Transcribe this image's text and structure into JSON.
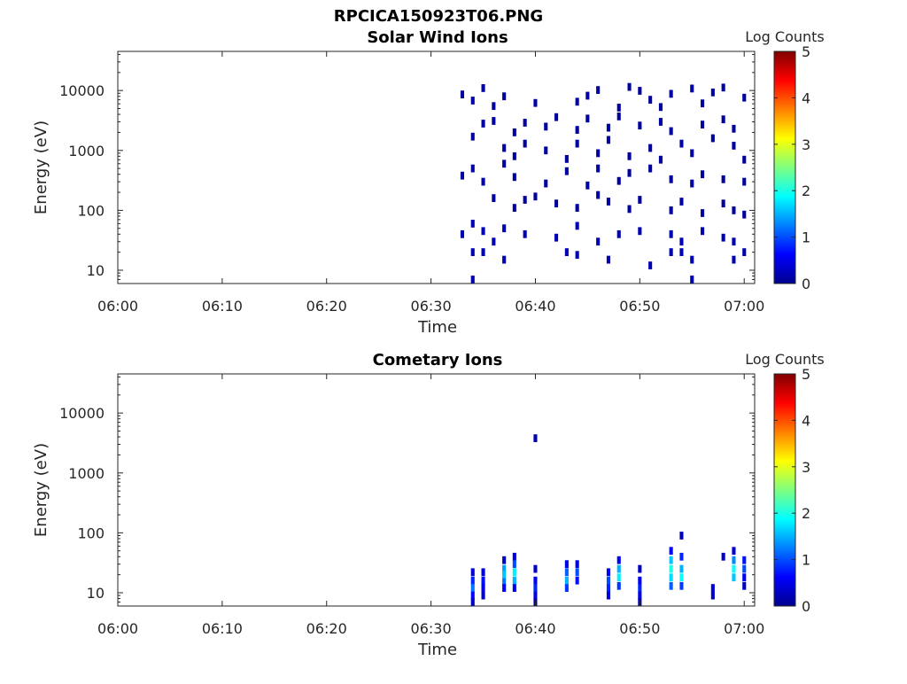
{
  "figure": {
    "filename": "RPCICA150923T06.PNG"
  },
  "colorbar": {
    "label": "Log Counts",
    "min": 0,
    "max": 5,
    "ticks": [
      "0",
      "1",
      "2",
      "3",
      "4",
      "5"
    ],
    "colormap": "jet"
  },
  "chart_data": [
    {
      "type": "heatmap",
      "title": "Solar Wind Ions",
      "xlabel": "Time",
      "ylabel": "Energy (eV)",
      "xlim": [
        "06:00",
        "07:01"
      ],
      "ylim": [
        6,
        45000
      ],
      "yscale": "log",
      "xticks": [
        "06:00",
        "06:10",
        "06:20",
        "06:30",
        "06:40",
        "06:50",
        "07:00"
      ],
      "yticks": [
        "10",
        "100",
        "1000",
        "10000"
      ],
      "colorbar_label": "Log Counts",
      "points": [
        {
          "t": "06:33",
          "e": 8600,
          "c": 0.1
        },
        {
          "t": "06:34",
          "e": 6800,
          "c": 0.1
        },
        {
          "t": "06:35",
          "e": 11000,
          "c": 0.1
        },
        {
          "t": "06:36",
          "e": 5500,
          "c": 0.1
        },
        {
          "t": "06:37",
          "e": 8000,
          "c": 0.1
        },
        {
          "t": "06:40",
          "e": 6200,
          "c": 0.1
        },
        {
          "t": "06:44",
          "e": 6500,
          "c": 0.1
        },
        {
          "t": "06:45",
          "e": 8200,
          "c": 0.1
        },
        {
          "t": "06:46",
          "e": 10200,
          "c": 0.1
        },
        {
          "t": "06:48",
          "e": 5200,
          "c": 0.1
        },
        {
          "t": "06:49",
          "e": 11500,
          "c": 0.1
        },
        {
          "t": "06:50",
          "e": 9900,
          "c": 0.1
        },
        {
          "t": "06:51",
          "e": 7000,
          "c": 0.1
        },
        {
          "t": "06:52",
          "e": 5300,
          "c": 0.1
        },
        {
          "t": "06:53",
          "e": 8800,
          "c": 0.1
        },
        {
          "t": "06:55",
          "e": 10800,
          "c": 0.1
        },
        {
          "t": "06:56",
          "e": 6100,
          "c": 0.1
        },
        {
          "t": "06:57",
          "e": 9300,
          "c": 0.1
        },
        {
          "t": "06:58",
          "e": 11200,
          "c": 0.1
        },
        {
          "t": "07:00",
          "e": 7600,
          "c": 0.1
        },
        {
          "t": "06:35",
          "e": 2800,
          "c": 0.1
        },
        {
          "t": "06:36",
          "e": 3100,
          "c": 0.1
        },
        {
          "t": "06:38",
          "e": 2000,
          "c": 0.1
        },
        {
          "t": "06:39",
          "e": 2900,
          "c": 0.1
        },
        {
          "t": "06:41",
          "e": 2500,
          "c": 0.1
        },
        {
          "t": "06:42",
          "e": 3600,
          "c": 0.1
        },
        {
          "t": "06:44",
          "e": 2200,
          "c": 0.1
        },
        {
          "t": "06:45",
          "e": 3400,
          "c": 0.1
        },
        {
          "t": "06:47",
          "e": 2400,
          "c": 0.1
        },
        {
          "t": "06:48",
          "e": 3700,
          "c": 0.1
        },
        {
          "t": "06:50",
          "e": 2600,
          "c": 0.1
        },
        {
          "t": "06:52",
          "e": 3000,
          "c": 0.1
        },
        {
          "t": "06:53",
          "e": 2100,
          "c": 0.1
        },
        {
          "t": "06:56",
          "e": 2700,
          "c": 0.1
        },
        {
          "t": "06:58",
          "e": 3300,
          "c": 0.1
        },
        {
          "t": "06:59",
          "e": 2300,
          "c": 0.1
        },
        {
          "t": "06:34",
          "e": 1700,
          "c": 0.1
        },
        {
          "t": "06:37",
          "e": 1100,
          "c": 0.1
        },
        {
          "t": "06:38",
          "e": 800,
          "c": 0.1
        },
        {
          "t": "06:39",
          "e": 1300,
          "c": 0.1
        },
        {
          "t": "06:41",
          "e": 1000,
          "c": 0.1
        },
        {
          "t": "06:43",
          "e": 720,
          "c": 0.1
        },
        {
          "t": "06:44",
          "e": 1300,
          "c": 0.1
        },
        {
          "t": "06:46",
          "e": 900,
          "c": 0.1
        },
        {
          "t": "06:47",
          "e": 1500,
          "c": 0.1
        },
        {
          "t": "06:49",
          "e": 800,
          "c": 0.1
        },
        {
          "t": "06:51",
          "e": 1100,
          "c": 0.1
        },
        {
          "t": "06:52",
          "e": 700,
          "c": 0.1
        },
        {
          "t": "06:54",
          "e": 1300,
          "c": 0.1
        },
        {
          "t": "06:55",
          "e": 900,
          "c": 0.1
        },
        {
          "t": "06:57",
          "e": 1600,
          "c": 0.1
        },
        {
          "t": "06:59",
          "e": 1200,
          "c": 0.1
        },
        {
          "t": "07:00",
          "e": 700,
          "c": 0.1
        },
        {
          "t": "06:33",
          "e": 380,
          "c": 0.1
        },
        {
          "t": "06:34",
          "e": 500,
          "c": 0.1
        },
        {
          "t": "06:35",
          "e": 300,
          "c": 0.1
        },
        {
          "t": "06:37",
          "e": 600,
          "c": 0.1
        },
        {
          "t": "06:38",
          "e": 360,
          "c": 0.1
        },
        {
          "t": "06:41",
          "e": 280,
          "c": 0.1
        },
        {
          "t": "06:43",
          "e": 450,
          "c": 0.1
        },
        {
          "t": "06:45",
          "e": 260,
          "c": 0.1
        },
        {
          "t": "06:46",
          "e": 500,
          "c": 0.1
        },
        {
          "t": "06:48",
          "e": 310,
          "c": 0.1
        },
        {
          "t": "06:49",
          "e": 420,
          "c": 0.1
        },
        {
          "t": "06:51",
          "e": 500,
          "c": 0.1
        },
        {
          "t": "06:53",
          "e": 330,
          "c": 0.1
        },
        {
          "t": "06:55",
          "e": 280,
          "c": 0.1
        },
        {
          "t": "06:56",
          "e": 400,
          "c": 0.1
        },
        {
          "t": "06:58",
          "e": 330,
          "c": 0.1
        },
        {
          "t": "07:00",
          "e": 300,
          "c": 0.1
        },
        {
          "t": "06:36",
          "e": 160,
          "c": 0.1
        },
        {
          "t": "06:38",
          "e": 110,
          "c": 0.1
        },
        {
          "t": "06:39",
          "e": 150,
          "c": 0.1
        },
        {
          "t": "06:40",
          "e": 170,
          "c": 0.1
        },
        {
          "t": "06:42",
          "e": 130,
          "c": 0.1
        },
        {
          "t": "06:44",
          "e": 110,
          "c": 0.1
        },
        {
          "t": "06:46",
          "e": 180,
          "c": 0.1
        },
        {
          "t": "06:47",
          "e": 140,
          "c": 0.1
        },
        {
          "t": "06:49",
          "e": 105,
          "c": 0.1
        },
        {
          "t": "06:50",
          "e": 150,
          "c": 0.1
        },
        {
          "t": "06:53",
          "e": 100,
          "c": 0.1
        },
        {
          "t": "06:54",
          "e": 140,
          "c": 0.1
        },
        {
          "t": "06:56",
          "e": 90,
          "c": 0.1
        },
        {
          "t": "06:58",
          "e": 130,
          "c": 0.1
        },
        {
          "t": "06:59",
          "e": 100,
          "c": 0.1
        },
        {
          "t": "07:00",
          "e": 85,
          "c": 0.1
        },
        {
          "t": "06:33",
          "e": 40,
          "c": 0.2
        },
        {
          "t": "06:34",
          "e": 60,
          "c": 0.2
        },
        {
          "t": "06:35",
          "e": 45,
          "c": 0.2
        },
        {
          "t": "06:36",
          "e": 30,
          "c": 0.2
        },
        {
          "t": "06:37",
          "e": 50,
          "c": 0.2
        },
        {
          "t": "06:39",
          "e": 40,
          "c": 0.2
        },
        {
          "t": "06:42",
          "e": 35,
          "c": 0.2
        },
        {
          "t": "06:44",
          "e": 55,
          "c": 0.2
        },
        {
          "t": "06:46",
          "e": 30,
          "c": 0.2
        },
        {
          "t": "06:48",
          "e": 40,
          "c": 0.2
        },
        {
          "t": "06:50",
          "e": 45,
          "c": 0.2
        },
        {
          "t": "06:53",
          "e": 40,
          "c": 0.2
        },
        {
          "t": "06:54",
          "e": 30,
          "c": 0.2
        },
        {
          "t": "06:56",
          "e": 45,
          "c": 0.2
        },
        {
          "t": "06:58",
          "e": 35,
          "c": 0.2
        },
        {
          "t": "06:59",
          "e": 30,
          "c": 0.2
        },
        {
          "t": "06:34",
          "e": 20,
          "c": 0.2
        },
        {
          "t": "06:35",
          "e": 20,
          "c": 0.2
        },
        {
          "t": "06:37",
          "e": 15,
          "c": 0.2
        },
        {
          "t": "06:43",
          "e": 20,
          "c": 0.2
        },
        {
          "t": "06:44",
          "e": 18,
          "c": 0.2
        },
        {
          "t": "06:47",
          "e": 15,
          "c": 0.2
        },
        {
          "t": "06:51",
          "e": 12,
          "c": 0.2
        },
        {
          "t": "06:53",
          "e": 20,
          "c": 0.2
        },
        {
          "t": "06:54",
          "e": 20,
          "c": 0.2
        },
        {
          "t": "06:55",
          "e": 15,
          "c": 0.2
        },
        {
          "t": "06:59",
          "e": 15,
          "c": 0.2
        },
        {
          "t": "07:00",
          "e": 20,
          "c": 0.2
        },
        {
          "t": "06:34",
          "e": 7,
          "c": 0.2
        },
        {
          "t": "06:55",
          "e": 7,
          "c": 0.2
        }
      ]
    },
    {
      "type": "heatmap",
      "title": "Cometary Ions",
      "xlabel": "Time",
      "ylabel": "Energy (eV)",
      "xlim": [
        "06:00",
        "07:01"
      ],
      "ylim": [
        6,
        45000
      ],
      "yscale": "log",
      "xticks": [
        "06:00",
        "06:10",
        "06:20",
        "06:30",
        "06:40",
        "06:50",
        "07:00"
      ],
      "yticks": [
        "10",
        "100",
        "1000",
        "10000"
      ],
      "colorbar_label": "Log Counts",
      "points": [
        {
          "t": "06:40",
          "e": 3800,
          "c": 0.2
        },
        {
          "t": "06:54",
          "e": 90,
          "c": 0.2
        },
        {
          "t": "06:34",
          "e": 22,
          "c": 0.4
        },
        {
          "t": "06:34",
          "e": 16,
          "c": 0.8
        },
        {
          "t": "06:34",
          "e": 12,
          "c": 1.2
        },
        {
          "t": "06:34",
          "e": 9,
          "c": 0.6
        },
        {
          "t": "06:34",
          "e": 7,
          "c": 0.3
        },
        {
          "t": "06:35",
          "e": 22,
          "c": 0.4
        },
        {
          "t": "06:35",
          "e": 16,
          "c": 0.7
        },
        {
          "t": "06:35",
          "e": 12,
          "c": 0.5
        },
        {
          "t": "06:35",
          "e": 9,
          "c": 0.3
        },
        {
          "t": "06:37",
          "e": 35,
          "c": 0.3
        },
        {
          "t": "06:37",
          "e": 25,
          "c": 1.4
        },
        {
          "t": "06:37",
          "e": 20,
          "c": 1.6
        },
        {
          "t": "06:37",
          "e": 15,
          "c": 1.2
        },
        {
          "t": "06:37",
          "e": 12,
          "c": 0.6
        },
        {
          "t": "06:38",
          "e": 40,
          "c": 0.4
        },
        {
          "t": "06:38",
          "e": 30,
          "c": 1.0
        },
        {
          "t": "06:38",
          "e": 22,
          "c": 1.8
        },
        {
          "t": "06:38",
          "e": 16,
          "c": 1.5
        },
        {
          "t": "06:38",
          "e": 12,
          "c": 0.5
        },
        {
          "t": "06:40",
          "e": 25,
          "c": 0.3
        },
        {
          "t": "06:40",
          "e": 16,
          "c": 0.6
        },
        {
          "t": "06:40",
          "e": 12,
          "c": 0.8
        },
        {
          "t": "06:40",
          "e": 9,
          "c": 0.5
        },
        {
          "t": "06:40",
          "e": 7,
          "c": 0.2
        },
        {
          "t": "06:43",
          "e": 30,
          "c": 0.5
        },
        {
          "t": "06:43",
          "e": 22,
          "c": 1.1
        },
        {
          "t": "06:43",
          "e": 16,
          "c": 1.5
        },
        {
          "t": "06:43",
          "e": 12,
          "c": 0.9
        },
        {
          "t": "06:44",
          "e": 30,
          "c": 0.4
        },
        {
          "t": "06:44",
          "e": 22,
          "c": 1.0
        },
        {
          "t": "06:44",
          "e": 16,
          "c": 0.7
        },
        {
          "t": "06:47",
          "e": 22,
          "c": 0.6
        },
        {
          "t": "06:47",
          "e": 16,
          "c": 1.0
        },
        {
          "t": "06:47",
          "e": 12,
          "c": 0.8
        },
        {
          "t": "06:47",
          "e": 9,
          "c": 0.4
        },
        {
          "t": "06:48",
          "e": 35,
          "c": 0.5
        },
        {
          "t": "06:48",
          "e": 25,
          "c": 1.5
        },
        {
          "t": "06:48",
          "e": 18,
          "c": 1.8
        },
        {
          "t": "06:48",
          "e": 13,
          "c": 0.9
        },
        {
          "t": "06:50",
          "e": 25,
          "c": 0.3
        },
        {
          "t": "06:50",
          "e": 16,
          "c": 0.6
        },
        {
          "t": "06:50",
          "e": 12,
          "c": 0.8
        },
        {
          "t": "06:50",
          "e": 9,
          "c": 0.5
        },
        {
          "t": "06:50",
          "e": 7,
          "c": 0.3
        },
        {
          "t": "06:53",
          "e": 50,
          "c": 0.6
        },
        {
          "t": "06:53",
          "e": 35,
          "c": 1.6
        },
        {
          "t": "06:53",
          "e": 25,
          "c": 2.0
        },
        {
          "t": "06:53",
          "e": 18,
          "c": 1.7
        },
        {
          "t": "06:53",
          "e": 13,
          "c": 1.1
        },
        {
          "t": "06:54",
          "e": 40,
          "c": 0.8
        },
        {
          "t": "06:54",
          "e": 25,
          "c": 1.5
        },
        {
          "t": "06:54",
          "e": 18,
          "c": 1.9
        },
        {
          "t": "06:54",
          "e": 13,
          "c": 0.9
        },
        {
          "t": "06:57",
          "e": 12,
          "c": 0.4
        },
        {
          "t": "06:57",
          "e": 9,
          "c": 0.3
        },
        {
          "t": "06:58",
          "e": 40,
          "c": 0.3
        },
        {
          "t": "06:59",
          "e": 50,
          "c": 0.4
        },
        {
          "t": "06:59",
          "e": 35,
          "c": 1.3
        },
        {
          "t": "06:59",
          "e": 25,
          "c": 1.9
        },
        {
          "t": "06:59",
          "e": 18,
          "c": 1.6
        },
        {
          "t": "07:00",
          "e": 35,
          "c": 0.7
        },
        {
          "t": "07:00",
          "e": 25,
          "c": 1.0
        },
        {
          "t": "07:00",
          "e": 18,
          "c": 0.6
        },
        {
          "t": "07:00",
          "e": 13,
          "c": 0.3
        }
      ]
    }
  ]
}
